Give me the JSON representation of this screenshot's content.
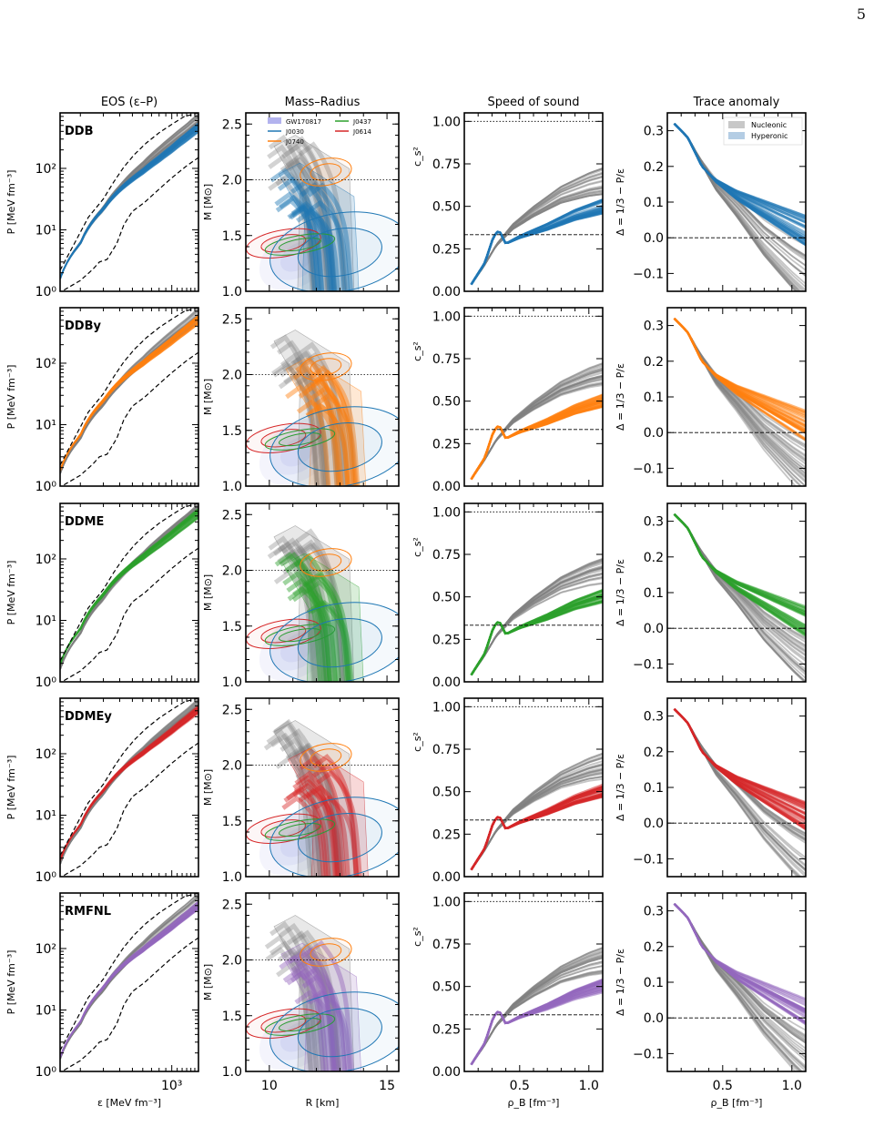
{
  "page": {
    "number": "5"
  },
  "figure": {
    "column_titles": [
      "EOS (ε–P)",
      "Mass–Radius",
      "Speed of sound",
      "Trace anomaly"
    ],
    "row_labels": [
      "DDB",
      "DDBy",
      "DDME",
      "DDMEy",
      "RMFNL"
    ],
    "colors": {
      "DDB": "#1f77b4",
      "DDBy": "#ff7f0e",
      "DDME": "#2ca02c",
      "DDMEy": "#d62728",
      "RMFNL": "#9467bd",
      "nucleonic": "#808080",
      "gw": "#b3b3ee"
    },
    "legend_mr": [
      {
        "label": "GW170817",
        "color": "#b3b3ee",
        "kind": "patch"
      },
      {
        "label": "J0437",
        "color": "#2ca02c",
        "kind": "line"
      },
      {
        "label": "J0030",
        "color": "#1f77b4",
        "kind": "line"
      },
      {
        "label": "J0614",
        "color": "#d62728",
        "kind": "line"
      },
      {
        "label": "J0740",
        "color": "#ff7f0e",
        "kind": "line"
      }
    ],
    "legend_trace": [
      {
        "label": "Nucleonic",
        "color": "#c8c8c8"
      },
      {
        "label": "Hyperonic",
        "color": "#b4cde4"
      }
    ]
  },
  "chart_data": [
    {
      "type": "line",
      "panel": "eos",
      "title": "EOS (ε–P)",
      "xlabel": "ε [MeV fm⁻³]",
      "ylabel": "P [MeV fm⁻³]",
      "xscale": "log",
      "yscale": "log",
      "xlim": [
        140,
        1600
      ],
      "ylim": [
        1,
        800
      ],
      "xticks": [
        {
          "v": 1000,
          "label": "10³"
        }
      ],
      "yticks": [
        {
          "v": 1,
          "label": "10⁰"
        },
        {
          "v": 10,
          "label": "10¹"
        },
        {
          "v": 100,
          "label": "10²"
        }
      ],
      "series": [
        {
          "role": "nucleonic",
          "x": [
            140,
            200,
            300,
            400,
            600,
            800,
            1000,
            1300,
            1600
          ],
          "y": [
            1.6,
            6,
            22,
            48,
            110,
            190,
            280,
            430,
            620
          ]
        },
        {
          "role": "hyperonic",
          "x": [
            140,
            200,
            300,
            400,
            600,
            800,
            1000,
            1300,
            1600
          ],
          "y": [
            1.6,
            6,
            22,
            45,
            90,
            145,
            210,
            330,
            470
          ]
        },
        {
          "role": "bound",
          "x": [
            140,
            180,
            230,
            300,
            360,
            430,
            520,
            640,
            800,
            1000,
            1250,
            1600
          ],
          "y": [
            2.2,
            6,
            16,
            32,
            60,
            105,
            170,
            260,
            380,
            520,
            700,
            800
          ]
        },
        {
          "role": "bound",
          "x": [
            150,
            200,
            250,
            280,
            320,
            380,
            430,
            500,
            620,
            800,
            1000,
            1300,
            1600
          ],
          "y": [
            1.05,
            1.5,
            2.3,
            3.0,
            3.3,
            6,
            12,
            20,
            28,
            46,
            70,
            110,
            150
          ]
        }
      ]
    },
    {
      "type": "area",
      "panel": "mass_radius",
      "title": "Mass–Radius",
      "xlabel": "R [km]",
      "ylabel": "M [M⊙]",
      "xlim": [
        9,
        15.5
      ],
      "ylim": [
        1.0,
        2.6
      ],
      "xticks": [
        10,
        15
      ],
      "yticks": [
        1.0,
        1.5,
        2.0,
        2.5
      ],
      "reference_line": 2.0,
      "nucleonic_R_band": [
        11.4,
        13.0
      ],
      "hyperonic_R_band": [
        11.6,
        13.2
      ],
      "nucleonic_Mmax": 2.4,
      "hyperonic_Mmax": 2.15,
      "constraints": [
        {
          "name": "J0740",
          "color": "#ff7f0e",
          "center": [
            12.4,
            2.07
          ],
          "radius_R": [
            1.6,
            1.1
          ],
          "radius_M": [
            0.07,
            0.12
          ]
        },
        {
          "name": "J0614",
          "color": "#d62728",
          "center": [
            10.6,
            1.43
          ],
          "radius_R": [
            1.1,
            1.6
          ],
          "radius_M": [
            0.06,
            0.12
          ]
        },
        {
          "name": "J0437",
          "color": "#2ca02c",
          "center": [
            11.3,
            1.42
          ],
          "radius_R": [
            0.9,
            1.5
          ],
          "radius_M": [
            0.04,
            0.08
          ]
        },
        {
          "name": "J0030",
          "color": "#1f77b4",
          "center": [
            13.0,
            1.35
          ],
          "radius_R": [
            1.5,
            3.0
          ],
          "radius_M": [
            0.15,
            0.35
          ]
        },
        {
          "name": "GW170817",
          "color": "#b3b3ee",
          "center": [
            11.8,
            1.36
          ],
          "radius_R": [
            1.0,
            1.8
          ],
          "radius_M": [
            0.1,
            0.25
          ]
        }
      ]
    },
    {
      "type": "line",
      "panel": "speed_of_sound",
      "title": "Speed of sound",
      "xlabel": "ρ_B [fm⁻³]",
      "ylabel": "c_s²",
      "xlim": [
        0.1,
        1.1
      ],
      "ylim": [
        0,
        1.05
      ],
      "xticks": [
        0.5,
        1.0
      ],
      "yticks": [
        0.0,
        0.25,
        0.5,
        0.75,
        1.0
      ],
      "reference_lines": [
        {
          "y": 1.0,
          "style": "dotted"
        },
        {
          "y": 0.3333,
          "style": "dashed"
        }
      ],
      "series": [
        {
          "role": "nucleonic",
          "x": [
            0.15,
            0.25,
            0.33,
            0.45,
            0.6,
            0.8,
            1.0,
            1.1
          ],
          "y": [
            0.04,
            0.16,
            0.27,
            0.38,
            0.47,
            0.57,
            0.63,
            0.65
          ]
        },
        {
          "role": "hyperonic",
          "x": [
            0.15,
            0.25,
            0.31,
            0.35,
            0.4,
            0.5,
            0.7,
            0.9,
            1.1
          ],
          "y": [
            0.04,
            0.17,
            0.32,
            0.36,
            0.28,
            0.32,
            0.38,
            0.45,
            0.5
          ]
        }
      ]
    },
    {
      "type": "line",
      "panel": "trace_anomaly",
      "title": "Trace anomaly",
      "xlabel": "ρ_B [fm⁻³]",
      "ylabel": "Δ = 1/3 − P/ε",
      "xlim": [
        0.1,
        1.1
      ],
      "ylim": [
        -0.15,
        0.35
      ],
      "xticks": [
        0.5,
        1.0
      ],
      "yticks": [
        -0.1,
        0.0,
        0.1,
        0.2,
        0.3
      ],
      "reference_line": 0.0,
      "series": [
        {
          "role": "nucleonic",
          "x": [
            0.15,
            0.25,
            0.35,
            0.45,
            0.6,
            0.8,
            1.0,
            1.1
          ],
          "y": [
            0.32,
            0.28,
            0.21,
            0.15,
            0.09,
            0.0,
            -0.07,
            -0.1
          ]
        },
        {
          "role": "hyperonic",
          "x": [
            0.15,
            0.25,
            0.35,
            0.45,
            0.6,
            0.8,
            1.0,
            1.1
          ],
          "y": [
            0.32,
            0.28,
            0.2,
            0.16,
            0.12,
            0.08,
            0.04,
            0.02
          ]
        }
      ]
    }
  ]
}
